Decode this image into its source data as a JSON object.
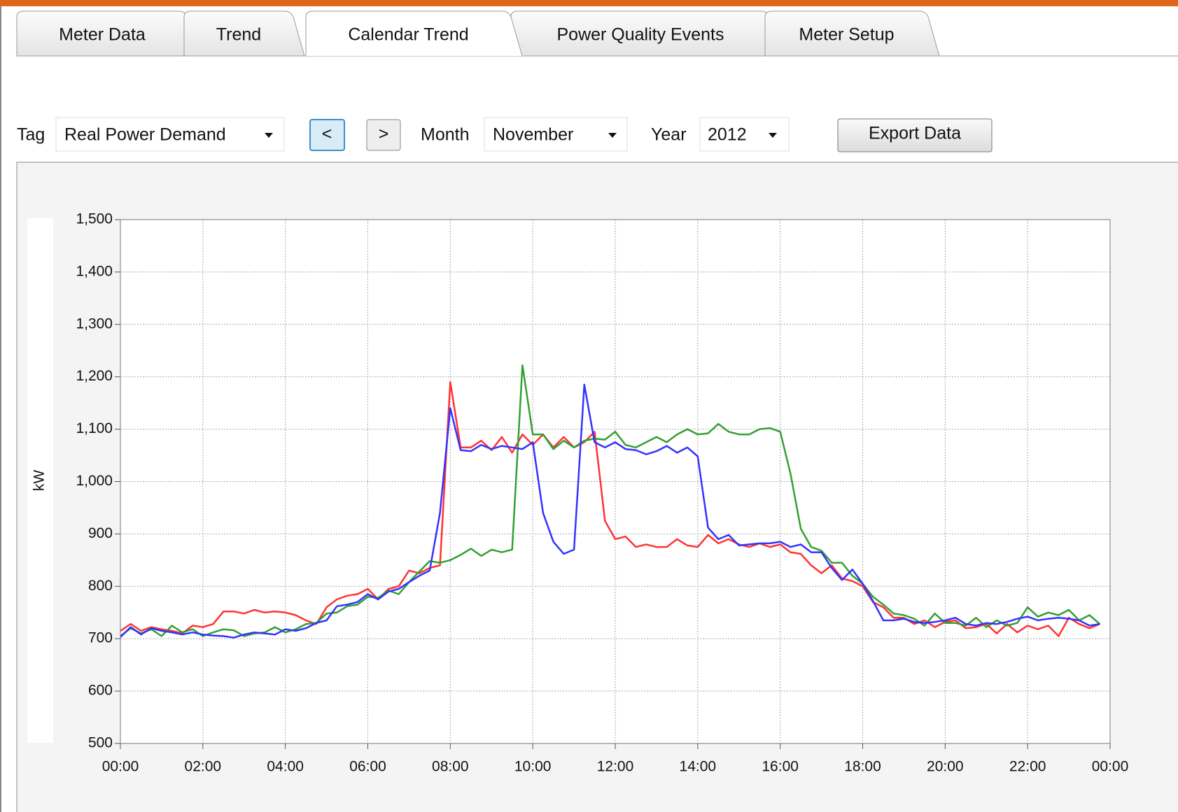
{
  "tabs": [
    "Meter Data",
    "Trend",
    "Calendar Trend",
    "Power Quality Events",
    "Meter Setup"
  ],
  "controls": {
    "tag_label": "Tag",
    "tag_value": "Real Power Demand",
    "prev": "<",
    "next": ">",
    "month_label": "Month",
    "month_value": "November",
    "year_label": "Year",
    "year_value": "2012",
    "export": "Export Data"
  },
  "chart_data": {
    "type": "line",
    "y_label": "kW",
    "xlim": [
      0,
      24
    ],
    "xticks": [
      {
        "value": 0,
        "label": "00:00"
      },
      {
        "value": 2,
        "label": "02:00"
      },
      {
        "value": 4,
        "label": "04:00"
      },
      {
        "value": 6,
        "label": "06:00"
      },
      {
        "value": 8,
        "label": "08:00"
      },
      {
        "value": 10,
        "label": "10:00"
      },
      {
        "value": 12,
        "label": "12:00"
      },
      {
        "value": 14,
        "label": "14:00"
      },
      {
        "value": 16,
        "label": "16:00"
      },
      {
        "value": 18,
        "label": "18:00"
      },
      {
        "value": 20,
        "label": "20:00"
      },
      {
        "value": 22,
        "label": "22:00"
      },
      {
        "value": 24,
        "label": "00:00"
      }
    ],
    "ylim": [
      500,
      1500
    ],
    "yticks": [
      500,
      600,
      700,
      800,
      900,
      {
        "value": 1000,
        "label": "1,000"
      },
      {
        "value": 1100,
        "label": "1,100"
      },
      {
        "value": 1200,
        "label": "1,200"
      },
      {
        "value": 1300,
        "label": "1,300"
      },
      {
        "value": 1400,
        "label": "1,400"
      },
      {
        "value": 1500,
        "label": "1,500"
      }
    ],
    "grid": true,
    "x": [
      0,
      0.25,
      0.5,
      0.75,
      1,
      1.25,
      1.5,
      1.75,
      2,
      2.25,
      2.5,
      2.75,
      3,
      3.25,
      3.5,
      3.75,
      4,
      4.25,
      4.5,
      4.75,
      5,
      5.25,
      5.5,
      5.75,
      6,
      6.25,
      6.5,
      6.75,
      7,
      7.25,
      7.5,
      7.75,
      8,
      8.25,
      8.5,
      8.75,
      9,
      9.25,
      9.5,
      9.75,
      10,
      10.25,
      10.5,
      10.75,
      11,
      11.25,
      11.5,
      11.75,
      12,
      12.25,
      12.5,
      12.75,
      13,
      13.25,
      13.5,
      13.75,
      14,
      14.25,
      14.5,
      14.75,
      15,
      15.25,
      15.5,
      15.75,
      16,
      16.25,
      16.5,
      16.75,
      17,
      17.25,
      17.5,
      17.75,
      18,
      18.25,
      18.5,
      18.75,
      19,
      19.25,
      19.5,
      19.75,
      20,
      20.25,
      20.5,
      20.75,
      21,
      21.25,
      21.5,
      21.75,
      22,
      22.25,
      22.5,
      22.75,
      23,
      23.25,
      23.5,
      23.75
    ],
    "series": [
      {
        "color": "#ff3333",
        "values": [
          715,
          728,
          715,
          722,
          718,
          715,
          710,
          725,
          722,
          728,
          752,
          752,
          748,
          755,
          750,
          752,
          750,
          745,
          735,
          728,
          760,
          775,
          782,
          785,
          795,
          775,
          795,
          800,
          830,
          825,
          835,
          840,
          1190,
          1065,
          1065,
          1078,
          1060,
          1085,
          1055,
          1090,
          1070,
          1090,
          1065,
          1085,
          1065,
          1075,
          1095,
          925,
          890,
          895,
          875,
          880,
          875,
          875,
          890,
          878,
          875,
          898,
          882,
          890,
          880,
          875,
          882,
          875,
          880,
          865,
          862,
          840,
          825,
          840,
          815,
          810,
          800,
          770,
          760,
          740,
          740,
          728,
          735,
          722,
          732,
          735,
          720,
          722,
          728,
          710,
          728,
          712,
          725,
          718,
          725,
          705,
          740,
          728,
          720,
          728
        ]
      },
      {
        "color": "#33a033",
        "values": [
          705,
          720,
          710,
          718,
          705,
          725,
          712,
          718,
          705,
          712,
          718,
          716,
          705,
          710,
          712,
          722,
          712,
          718,
          728,
          730,
          748,
          750,
          762,
          765,
          780,
          778,
          792,
          785,
          808,
          828,
          848,
          845,
          850,
          860,
          872,
          858,
          870,
          865,
          870,
          1222,
          1090,
          1090,
          1062,
          1078,
          1065,
          1078,
          1082,
          1080,
          1095,
          1070,
          1065,
          1075,
          1085,
          1075,
          1090,
          1100,
          1090,
          1092,
          1110,
          1095,
          1090,
          1090,
          1100,
          1102,
          1095,
          1015,
          910,
          875,
          868,
          845,
          845,
          820,
          805,
          780,
          765,
          748,
          745,
          738,
          725,
          748,
          730,
          730,
          725,
          740,
          722,
          735,
          725,
          730,
          760,
          742,
          750,
          745,
          755,
          735,
          745,
          728
        ]
      },
      {
        "color": "#3333ff",
        "values": [
          703,
          722,
          708,
          720,
          715,
          712,
          708,
          712,
          708,
          706,
          705,
          702,
          708,
          712,
          710,
          708,
          718,
          715,
          720,
          730,
          735,
          762,
          765,
          770,
          785,
          775,
          790,
          795,
          808,
          820,
          830,
          940,
          1140,
          1060,
          1058,
          1070,
          1062,
          1068,
          1065,
          1062,
          1075,
          940,
          885,
          862,
          870,
          1185,
          1075,
          1065,
          1075,
          1062,
          1060,
          1052,
          1058,
          1068,
          1055,
          1065,
          1048,
          912,
          890,
          898,
          878,
          880,
          882,
          882,
          885,
          875,
          880,
          865,
          865,
          835,
          812,
          832,
          805,
          772,
          735,
          735,
          738,
          732,
          730,
          732,
          735,
          740,
          728,
          725,
          730,
          728,
          732,
          738,
          742,
          735,
          738,
          740,
          738,
          735,
          725,
          728
        ]
      }
    ]
  }
}
